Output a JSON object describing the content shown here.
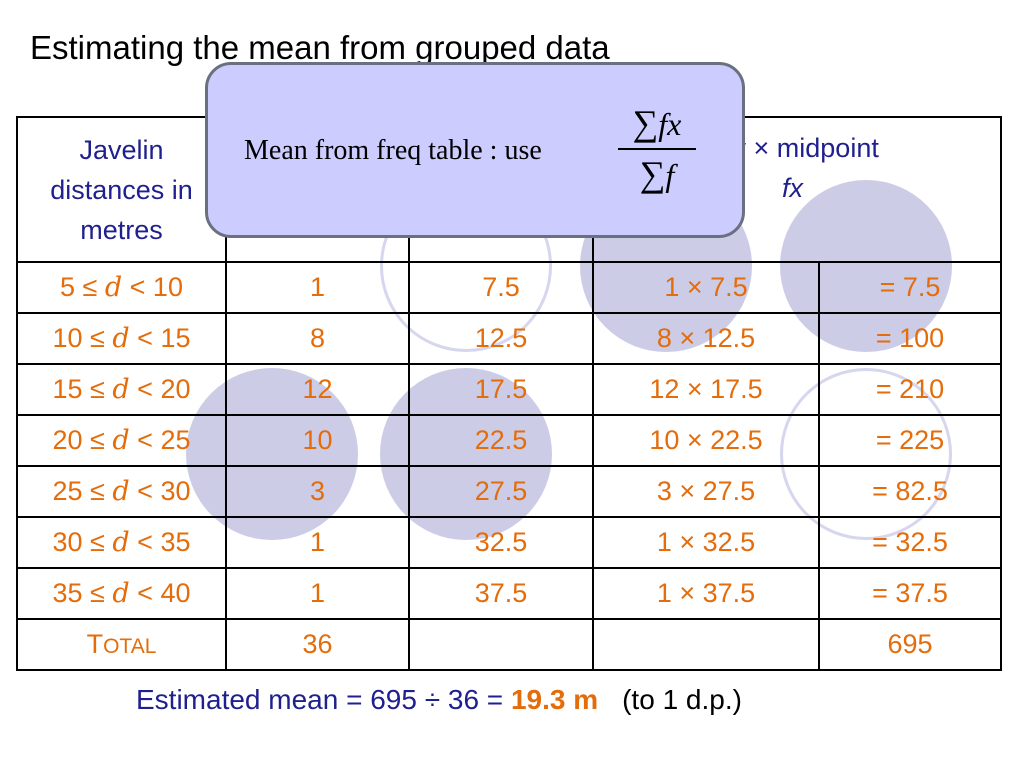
{
  "title": "Estimating the mean from grouped data",
  "table": {
    "header": {
      "col1": [
        "Javelin",
        "distances in",
        "metres"
      ],
      "col4": "ncy × midpoint",
      "col4_sub": "fx"
    },
    "rows": [
      {
        "lo": "5 ≤ ",
        "var": "d",
        "hi": " < 10",
        "f": "1",
        "mid": "7.5",
        "prod": "1 ×  7.5",
        "res": "= 7.5"
      },
      {
        "lo": "10 ≤ ",
        "var": "d",
        "hi": " < 15",
        "f": "8",
        "mid": "12.5",
        "prod": "8 × 12.5",
        "res": "= 100"
      },
      {
        "lo": "15 ≤ ",
        "var": "d",
        "hi": " < 20",
        "f": "12",
        "mid": "17.5",
        "prod": "12 × 17.5",
        "res": "= 210"
      },
      {
        "lo": "20 ≤ ",
        "var": "d",
        "hi": " < 25",
        "f": "10",
        "mid": "22.5",
        "prod": "10 × 22.5",
        "res": "= 225"
      },
      {
        "lo": "25 ≤ ",
        "var": "d",
        "hi": " < 30",
        "f": "3",
        "mid": "27.5",
        "prod": "3 × 27.5",
        "res": "= 82.5"
      },
      {
        "lo": "30 ≤ ",
        "var": "d",
        "hi": " < 35",
        "f": "1",
        "mid": "32.5",
        "prod": "1 × 32.5",
        "res": "= 32.5"
      },
      {
        "lo": "35 ≤ ",
        "var": "d",
        "hi": " < 40",
        "f": "1",
        "mid": "37.5",
        "prod": "1 × 37.5",
        "res": "= 37.5"
      }
    ],
    "total": {
      "label_first": "T",
      "label_rest": "OTAL",
      "f": "36",
      "res": "695"
    }
  },
  "popup": {
    "text": "Mean from freq table : use",
    "num_sigma": "∑",
    "num_expr": "fx",
    "den_sigma": "∑",
    "den_expr": "f"
  },
  "result": {
    "prefix": "Estimated mean = 695 ÷ 36  = ",
    "answer": "19.3 m",
    "suffix": "(to 1 d.p.)"
  },
  "colors": {
    "blue_text": "#1f1f8f",
    "orange_text": "#e46c0a",
    "popup_bg": "#ccccff",
    "circle_fill": "#cccce6"
  }
}
